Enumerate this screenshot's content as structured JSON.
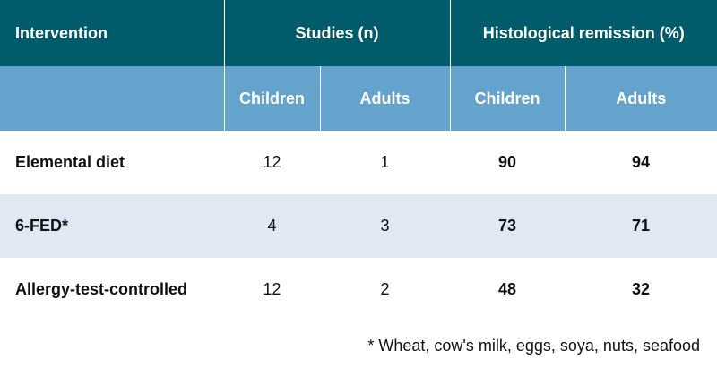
{
  "header": {
    "intervention": "Intervention",
    "studies_group": "Studies (n)",
    "remission_group": "Histological remission (%)",
    "sub": {
      "studies_children": "Children",
      "studies_adults": "Adults",
      "remission_children": "Children",
      "remission_adults": "Adults"
    }
  },
  "rows": [
    {
      "intervention": "Elemental diet",
      "studies_children": "12",
      "studies_adults": "1",
      "remission_children": "90",
      "remission_adults": "94"
    },
    {
      "intervention": "6-FED*",
      "studies_children": "4",
      "studies_adults": "3",
      "remission_children": "73",
      "remission_adults": "71"
    },
    {
      "intervention": "Allergy-test-controlled",
      "studies_children": "12",
      "studies_adults": "2",
      "remission_children": "48",
      "remission_adults": "32"
    }
  ],
  "footnote": "* Wheat, cow's milk, eggs, soya, nuts, seafood",
  "colors": {
    "header_top": "#005c6b",
    "header_sub": "#64a3cc",
    "row_alt": "#dfe8f3"
  }
}
